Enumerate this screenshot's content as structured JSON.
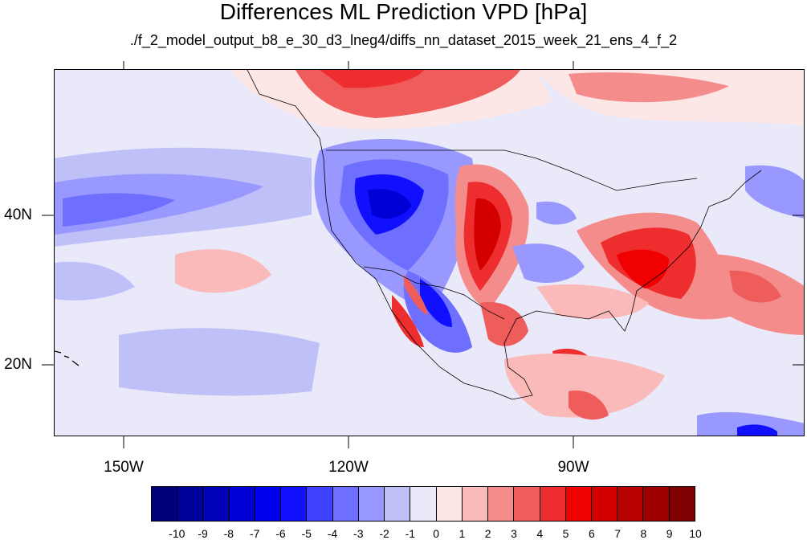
{
  "title": "Differences ML Prediction VPD [hPa]",
  "subtitle": "./f_2_model_output_b8_e_30_d3_lneg4/diffs_nn_dataset_2015_week_21_ens_4_f_2",
  "lat_labels": [
    "40N",
    "20N"
  ],
  "lon_labels": [
    "150W",
    "120W",
    "90W"
  ],
  "colorbar": {
    "labels": [
      "-10",
      "-9",
      "-8",
      "-7",
      "-6",
      "-5",
      "-4",
      "-3",
      "-2",
      "-1",
      "0",
      "1",
      "2",
      "3",
      "4",
      "5",
      "6",
      "7",
      "8",
      "9",
      "10"
    ],
    "colors": [
      "#00007a",
      "#00009a",
      "#0000b8",
      "#0000d6",
      "#0000f0",
      "#1010ff",
      "#4040ff",
      "#6e6eff",
      "#9898ff",
      "#c0c0f8",
      "#e9e9f9",
      "#fde6e6",
      "#fbbaba",
      "#f58c8c",
      "#ef5c5c",
      "#ee2e2e",
      "#f00000",
      "#d40000",
      "#b80000",
      "#9c0000",
      "#7e0000"
    ]
  },
  "map": {
    "background_color": "#e9e9f9",
    "grid_lines": "none"
  }
}
